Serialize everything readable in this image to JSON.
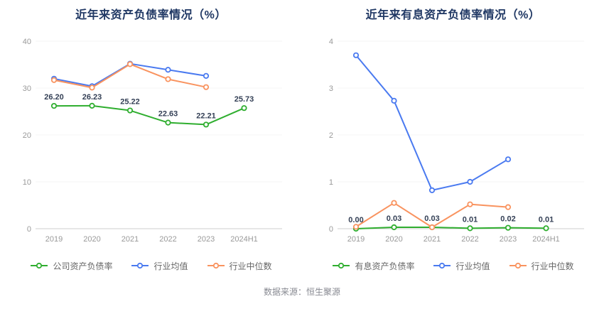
{
  "page": {
    "source": "数据来源：恒生聚源"
  },
  "chart_data": [
    {
      "type": "line",
      "title": "近年来资产负债率情况（%）",
      "categories": [
        "2019",
        "2020",
        "2021",
        "2022",
        "2023",
        "2024H1"
      ],
      "ylabel": "",
      "xlabel": "",
      "ylim": [
        0,
        40
      ],
      "yticks": [
        0,
        10,
        20,
        30,
        40
      ],
      "grid": false,
      "legend_position": "bottom",
      "series": [
        {
          "name": "公司资产负债率",
          "color": "#2fae2f",
          "values": [
            26.2,
            26.23,
            25.22,
            22.63,
            22.21,
            25.73
          ],
          "labels": [
            "26.20",
            "26.23",
            "25.22",
            "22.63",
            "22.21",
            "25.73"
          ]
        },
        {
          "name": "行业均值",
          "color": "#4a7af0",
          "values": [
            32.0,
            30.4,
            35.2,
            33.9,
            32.6,
            null
          ]
        },
        {
          "name": "行业中位数",
          "color": "#f9935f",
          "values": [
            31.7,
            30.1,
            35.1,
            31.9,
            30.2,
            null
          ]
        }
      ]
    },
    {
      "type": "line",
      "title": "近年来有息资产负债率情况（%）",
      "categories": [
        "2019",
        "2020",
        "2021",
        "2022",
        "2023",
        "2024H1"
      ],
      "ylabel": "",
      "xlabel": "",
      "ylim": [
        0,
        4
      ],
      "yticks": [
        0,
        1,
        2,
        3,
        4
      ],
      "grid": false,
      "legend_position": "bottom",
      "series": [
        {
          "name": "有息资产负债率",
          "color": "#2fae2f",
          "values": [
            0.0,
            0.03,
            0.03,
            0.01,
            0.02,
            0.01
          ],
          "labels": [
            "0.00",
            "0.03",
            "0.03",
            "0.01",
            "0.02",
            "0.01"
          ]
        },
        {
          "name": "行业均值",
          "color": "#4a7af0",
          "values": [
            3.7,
            2.73,
            0.82,
            1.0,
            1.48,
            null
          ]
        },
        {
          "name": "行业中位数",
          "color": "#f9935f",
          "values": [
            0.04,
            0.55,
            0.03,
            0.52,
            0.46,
            null
          ]
        }
      ]
    }
  ]
}
